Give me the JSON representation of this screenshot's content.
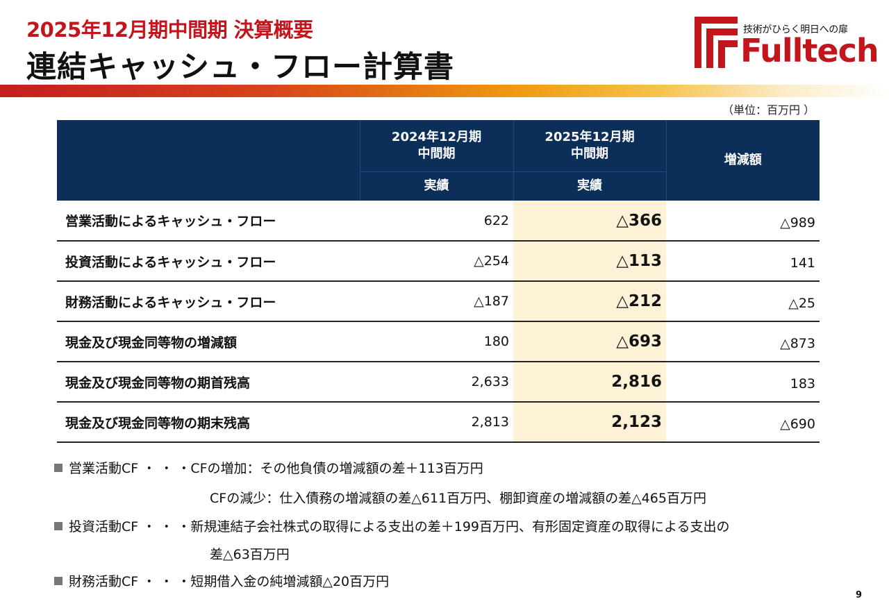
{
  "header": {
    "subtitle": "2025年12月期中間期 決算概要",
    "title": "連結キャッシュ・フロー計算書"
  },
  "logo": {
    "tagline": "技術がひらく明日への扉",
    "name": "Fulltech",
    "brand_color": "#c0161c"
  },
  "unit": "（単位：百万円 ）",
  "table": {
    "columns": [
      {
        "line1": "2024年12月期",
        "line2": "中間期",
        "sub": "実績"
      },
      {
        "line1": "2025年12月期",
        "line2": "中間期",
        "sub": "実績"
      },
      {
        "label": "増減額"
      }
    ],
    "rows": [
      {
        "label": "営業活動によるキャッシュ・フロー",
        "prev": "622",
        "curr": "△366",
        "diff": "△989"
      },
      {
        "label": "投資活動によるキャッシュ・フロー",
        "prev": "△254",
        "curr": "△113",
        "diff": "141"
      },
      {
        "label": "財務活動によるキャッシュ・フロー",
        "prev": "△187",
        "curr": "△212",
        "diff": "△25"
      },
      {
        "label": "現金及び現金同等物の増減額",
        "prev": "180",
        "curr": "△693",
        "diff": "△873"
      },
      {
        "label": "現金及び現金同等物の期首残高",
        "prev": "2,633",
        "curr": "2,816",
        "diff": "183"
      },
      {
        "label": "現金及び現金同等物の期末残高",
        "prev": "2,813",
        "curr": "2,123",
        "diff": "△690"
      }
    ],
    "header_color": "#0c2f5a",
    "highlight_color": "#fdf2d6"
  },
  "notes": [
    {
      "head": "営業活動CF ・ ・ ・",
      "text": "CFの増加：その他負債の増減額の差＋113百万円"
    },
    {
      "text": "CFの減少：仕入債務の増減額の差△611百万円、棚卸資産の増減額の差△465百万円"
    },
    {
      "head": "投資活動CF ・ ・ ・",
      "text": "新規連結子会社株式の取得による支出の差＋199百万円、有形固定資産の取得による支出の"
    },
    {
      "text": "差△63百万円"
    },
    {
      "head": "財務活動CF ・ ・ ・",
      "text": "短期借入金の純増減額△20百万円"
    }
  ],
  "page_number": "9"
}
